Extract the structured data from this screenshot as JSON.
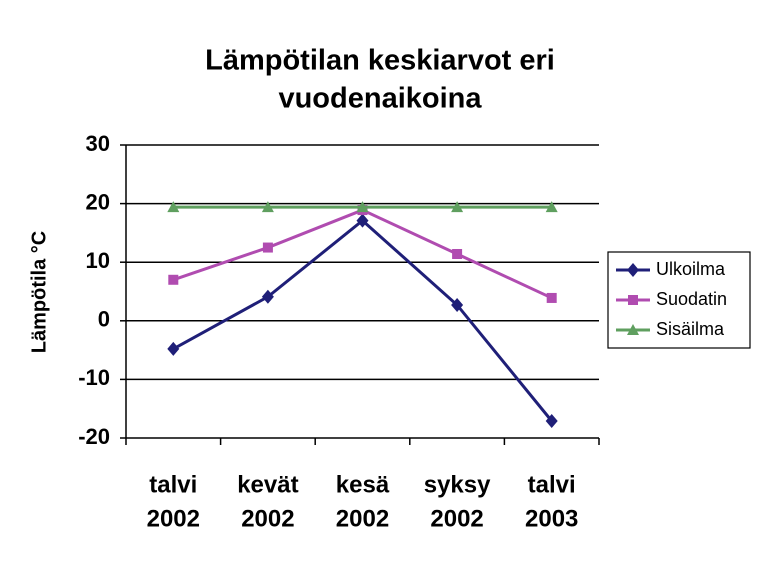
{
  "chart_data": {
    "type": "line",
    "title": [
      "Lämpötilan keskiarvot eri",
      "vuodenaikoina"
    ],
    "y_label": "Lämpötila °C",
    "categories": [
      [
        "talvi",
        "2002"
      ],
      [
        "kevät",
        "2002"
      ],
      [
        "kesä",
        "2002"
      ],
      [
        "syksy",
        "2002"
      ],
      [
        "talvi",
        "2003"
      ]
    ],
    "series": [
      {
        "name": "Ulkoilma",
        "color": "#1f1f78",
        "marker": "diamond",
        "values": [
          -4.8,
          4.1,
          17.1,
          2.7,
          -17.1
        ]
      },
      {
        "name": "Suodatin",
        "color": "#b04cb0",
        "marker": "square",
        "values": [
          7.0,
          12.5,
          18.9,
          11.4,
          3.9
        ]
      },
      {
        "name": "Sisäilma",
        "color": "#5f9f5f",
        "marker": "triangle",
        "values": [
          19.4,
          19.4,
          19.4,
          19.4,
          19.4
        ]
      }
    ],
    "ylim": [
      -20,
      30
    ],
    "yticks": [
      -20,
      -10,
      0,
      10,
      20,
      30
    ],
    "grid": true,
    "legend": "right"
  }
}
